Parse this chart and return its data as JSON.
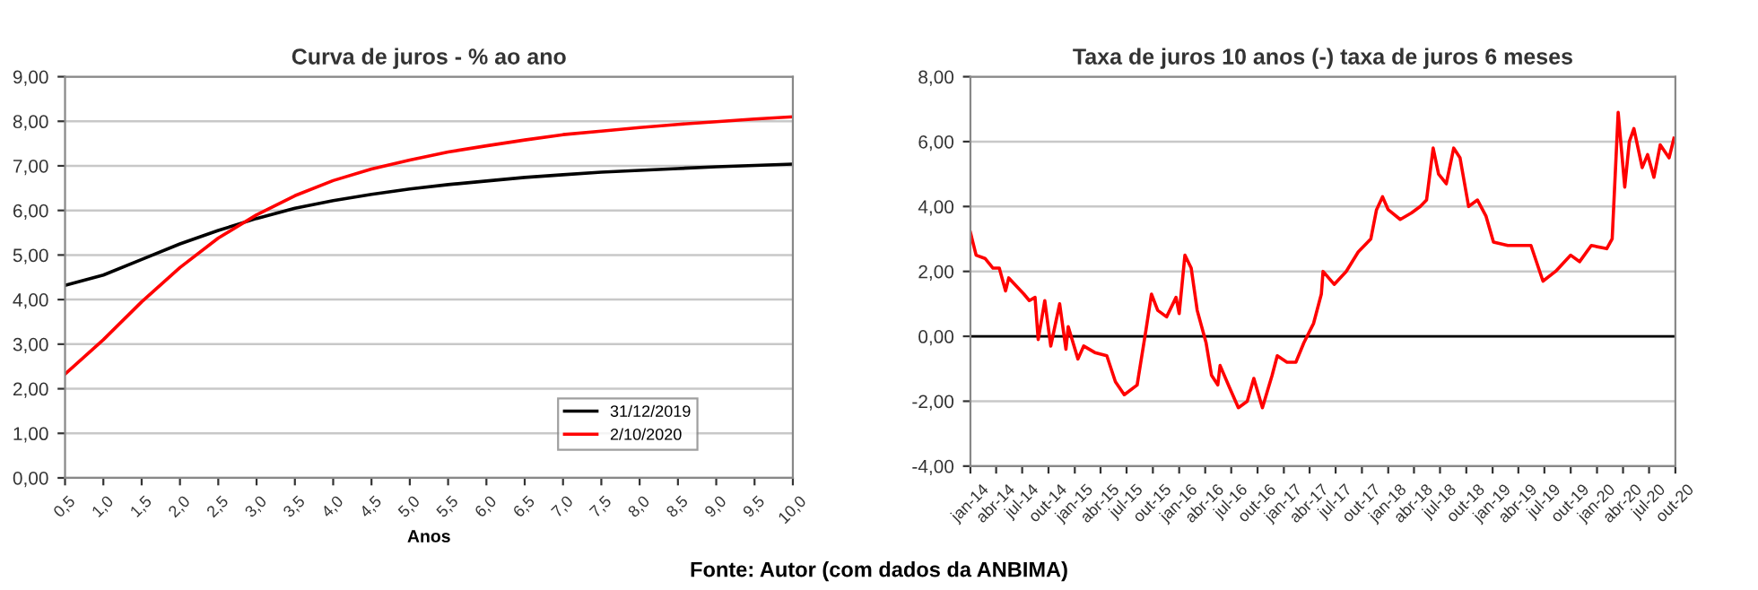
{
  "chart_data": [
    {
      "type": "line",
      "title": "Curva de juros - % ao ano",
      "xlabel": "Anos",
      "x": [
        0.5,
        1.0,
        1.5,
        2.0,
        2.5,
        3.0,
        3.5,
        4.0,
        4.5,
        5.0,
        5.5,
        6.0,
        6.5,
        7.0,
        7.5,
        8.0,
        8.5,
        9.0,
        9.5,
        10.0
      ],
      "series": [
        {
          "name": "31/12/2019",
          "color": "#000000",
          "values": [
            4.32,
            4.55,
            4.9,
            5.25,
            5.55,
            5.82,
            6.05,
            6.22,
            6.36,
            6.48,
            6.58,
            6.66,
            6.74,
            6.8,
            6.86,
            6.9,
            6.94,
            6.98,
            7.01,
            7.04
          ]
        },
        {
          "name": "2/10/2020",
          "color": "#ff0000",
          "values": [
            2.33,
            3.1,
            3.95,
            4.72,
            5.38,
            5.9,
            6.33,
            6.67,
            6.93,
            7.13,
            7.31,
            7.45,
            7.58,
            7.7,
            7.78,
            7.86,
            7.93,
            7.99,
            8.05,
            8.1
          ]
        }
      ],
      "xlim": [
        0.5,
        10.0
      ],
      "xticks": [
        {
          "value": 0.5,
          "label": "0,5"
        },
        {
          "value": 1.0,
          "label": "1,0"
        },
        {
          "value": 1.5,
          "label": "1,5"
        },
        {
          "value": 2.0,
          "label": "2,0"
        },
        {
          "value": 2.5,
          "label": "2,5"
        },
        {
          "value": 3.0,
          "label": "3,0"
        },
        {
          "value": 3.5,
          "label": "3,5"
        },
        {
          "value": 4.0,
          "label": "4,0"
        },
        {
          "value": 4.5,
          "label": "4,5"
        },
        {
          "value": 5.0,
          "label": "5,0"
        },
        {
          "value": 5.5,
          "label": "5,5"
        },
        {
          "value": 6.0,
          "label": "6,0"
        },
        {
          "value": 6.5,
          "label": "6,5"
        },
        {
          "value": 7.0,
          "label": "7,0"
        },
        {
          "value": 7.5,
          "label": "7,5"
        },
        {
          "value": 8.0,
          "label": "8,0"
        },
        {
          "value": 8.5,
          "label": "8,5"
        },
        {
          "value": 9.0,
          "label": "9,0"
        },
        {
          "value": 9.5,
          "label": "9,5"
        },
        {
          "value": 10.0,
          "label": "10,0"
        }
      ],
      "ylim": [
        0,
        9
      ],
      "yticks": [
        {
          "value": 0,
          "label": "0,00"
        },
        {
          "value": 1,
          "label": "1,00"
        },
        {
          "value": 2,
          "label": "2,00"
        },
        {
          "value": 3,
          "label": "3,00"
        },
        {
          "value": 4,
          "label": "4,00"
        },
        {
          "value": 5,
          "label": "5,00"
        },
        {
          "value": 6,
          "label": "6,00"
        },
        {
          "value": 7,
          "label": "7,00"
        },
        {
          "value": 8,
          "label": "8,00"
        },
        {
          "value": 9,
          "label": "9,00"
        }
      ],
      "grid": "y",
      "legend": "bottom right",
      "annotations": [
        "Fonte: Autor (com dados da ANBIMA)"
      ]
    },
    {
      "type": "line",
      "title": "Taxa de juros 10 anos (-) taxa de juros 6 meses",
      "x": [
        "2014-01-01",
        "2014-01-21",
        "2014-02-21",
        "2014-03-21",
        "2014-04-12",
        "2014-05-04",
        "2014-05-15",
        "2014-07-07",
        "2014-07-26",
        "2014-08-15",
        "2014-08-26",
        "2014-09-18",
        "2014-10-09",
        "2014-11-09",
        "2014-12-01",
        "2014-12-09",
        "2015-01-12",
        "2015-02-01",
        "2015-03-12",
        "2015-04-23",
        "2015-05-23",
        "2015-06-23",
        "2015-08-07",
        "2015-09-07",
        "2015-09-26",
        "2015-10-18",
        "2015-11-18",
        "2015-12-21",
        "2016-01-01",
        "2016-01-21",
        "2016-02-12",
        "2016-03-04",
        "2016-04-04",
        "2016-04-23",
        "2016-05-15",
        "2016-05-23",
        "2016-06-26",
        "2016-07-26",
        "2016-08-26",
        "2016-09-18",
        "2016-10-18",
        "2016-11-21",
        "2016-12-09",
        "2017-01-12",
        "2017-02-12",
        "2017-03-12",
        "2017-04-15",
        "2017-05-12",
        "2017-05-18",
        "2017-06-26",
        "2017-08-07",
        "2017-09-18",
        "2017-11-01",
        "2017-11-21",
        "2017-12-12",
        "2018-01-01",
        "2018-02-12",
        "2018-03-23",
        "2018-04-23",
        "2018-05-15",
        "2018-06-07",
        "2018-06-26",
        "2018-07-23",
        "2018-08-18",
        "2018-09-09",
        "2018-10-09",
        "2018-11-09",
        "2018-12-09",
        "2019-01-04",
        "2019-02-23",
        "2019-04-04",
        "2019-05-15",
        "2019-06-26",
        "2019-08-09",
        "2019-10-01",
        "2019-11-01",
        "2019-12-12",
        "2020-02-04",
        "2020-02-23",
        "2020-03-15",
        "2020-04-07",
        "2020-04-23",
        "2020-05-09",
        "2020-06-07",
        "2020-06-26",
        "2020-07-18",
        "2020-08-09",
        "2020-09-09",
        "2020-09-26"
      ],
      "series": [
        {
          "color": "#ff0000",
          "values": [
            3.2,
            2.5,
            2.4,
            2.1,
            2.1,
            1.4,
            1.8,
            1.3,
            1.1,
            1.2,
            -0.1,
            1.1,
            -0.3,
            1.0,
            -0.4,
            0.3,
            -0.7,
            -0.3,
            -0.5,
            -0.6,
            -1.4,
            -1.8,
            -1.5,
            0.2,
            1.3,
            0.8,
            0.6,
            1.2,
            0.7,
            2.5,
            2.1,
            0.8,
            -0.2,
            -1.2,
            -1.5,
            -0.9,
            -1.6,
            -2.2,
            -2.0,
            -1.3,
            -2.2,
            -1.2,
            -0.6,
            -0.8,
            -0.8,
            -0.2,
            0.4,
            1.3,
            2.0,
            1.6,
            2.0,
            2.6,
            3.0,
            3.9,
            4.3,
            3.9,
            3.6,
            3.8,
            4.0,
            4.2,
            5.8,
            5.0,
            4.7,
            5.8,
            5.5,
            4.0,
            4.2,
            3.7,
            2.9,
            2.8,
            2.8,
            2.8,
            1.7,
            2.0,
            2.5,
            2.3,
            2.8,
            2.7,
            3.0,
            6.9,
            4.6,
            6.0,
            6.4,
            5.2,
            5.6,
            4.9,
            5.9,
            5.5,
            6.1
          ]
        }
      ],
      "xlim": [
        "2014-01-01",
        "2020-10-01"
      ],
      "xticks": [
        {
          "value": "2014-01-01",
          "label": "jan-14"
        },
        {
          "value": "2014-04-01",
          "label": "abr-14"
        },
        {
          "value": "2014-07-01",
          "label": "jul-14"
        },
        {
          "value": "2014-10-01",
          "label": "out-14"
        },
        {
          "value": "2015-01-01",
          "label": "jan-15"
        },
        {
          "value": "2015-04-01",
          "label": "abr-15"
        },
        {
          "value": "2015-07-01",
          "label": "jul-15"
        },
        {
          "value": "2015-10-01",
          "label": "out-15"
        },
        {
          "value": "2016-01-01",
          "label": "jan-16"
        },
        {
          "value": "2016-04-01",
          "label": "abr-16"
        },
        {
          "value": "2016-07-01",
          "label": "jul-16"
        },
        {
          "value": "2016-10-01",
          "label": "out-16"
        },
        {
          "value": "2017-01-01",
          "label": "jan-17"
        },
        {
          "value": "2017-04-01",
          "label": "abr-17"
        },
        {
          "value": "2017-07-01",
          "label": "jul-17"
        },
        {
          "value": "2017-10-01",
          "label": "out-17"
        },
        {
          "value": "2018-01-01",
          "label": "jan-18"
        },
        {
          "value": "2018-04-01",
          "label": "abr-18"
        },
        {
          "value": "2018-07-01",
          "label": "jul-18"
        },
        {
          "value": "2018-10-01",
          "label": "out-18"
        },
        {
          "value": "2019-01-01",
          "label": "jan-19"
        },
        {
          "value": "2019-04-01",
          "label": "abr-19"
        },
        {
          "value": "2019-07-01",
          "label": "jul-19"
        },
        {
          "value": "2019-10-01",
          "label": "out-19"
        },
        {
          "value": "2020-01-01",
          "label": "jan-20"
        },
        {
          "value": "2020-04-01",
          "label": "abr-20"
        },
        {
          "value": "2020-07-01",
          "label": "jul-20"
        },
        {
          "value": "2020-10-01",
          "label": "out-20"
        }
      ],
      "ylim": [
        -4,
        8
      ],
      "yticks": [
        {
          "value": -4,
          "label": "-4,00"
        },
        {
          "value": -2,
          "label": "-2,00"
        },
        {
          "value": 0,
          "label": "0,00"
        },
        {
          "value": 2,
          "label": "2,00"
        },
        {
          "value": 4,
          "label": "4,00"
        },
        {
          "value": 6,
          "label": "6,00"
        },
        {
          "value": 8,
          "label": "8,00"
        }
      ],
      "grid": "y",
      "ref_lines": [
        {
          "axis": "y",
          "value": 0,
          "color": "#000000"
        }
      ]
    }
  ]
}
